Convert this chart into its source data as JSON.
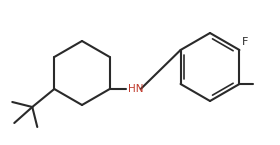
{
  "bg_color": "#ffffff",
  "line_color": "#2a2a2a",
  "hn_color": "#c0392b",
  "label_color": "#2a2a2a",
  "lw": 1.5,
  "fig_w": 2.8,
  "fig_h": 1.45,
  "dpi": 100
}
